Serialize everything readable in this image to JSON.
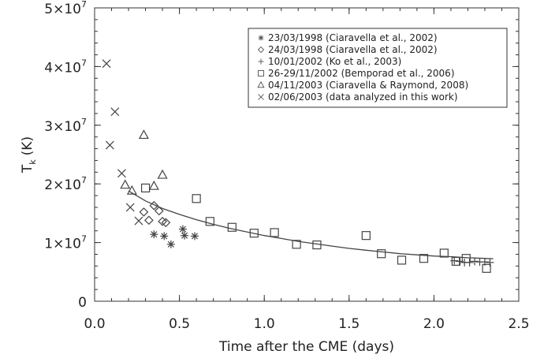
{
  "chart_data": {
    "type": "scatter",
    "xlabel": "Time after the CME (days)",
    "ylabel": "T",
    "ylabel_subscript": "k",
    "ylabel_unit": "(K)",
    "xlim": [
      0.0,
      2.5
    ],
    "ylim": [
      0,
      50000000
    ],
    "x_ticks": [
      {
        "value": 0.0,
        "label": "0.0"
      },
      {
        "value": 0.5,
        "label": "0.5"
      },
      {
        "value": 1.0,
        "label": "1.0"
      },
      {
        "value": 1.5,
        "label": "1.5"
      },
      {
        "value": 2.0,
        "label": "2.0"
      },
      {
        "value": 2.5,
        "label": "2.5"
      }
    ],
    "y_ticks": [
      {
        "value": 0,
        "mantissa": "0",
        "exponent": ""
      },
      {
        "value": 10000000,
        "mantissa": "1×10",
        "exponent": "7"
      },
      {
        "value": 20000000,
        "mantissa": "2×10",
        "exponent": "7"
      },
      {
        "value": 30000000,
        "mantissa": "3×10",
        "exponent": "7"
      },
      {
        "value": 40000000,
        "mantissa": "4×10",
        "exponent": "7"
      },
      {
        "value": 50000000,
        "mantissa": "5×10",
        "exponent": "7"
      }
    ],
    "legend_position": "top-right",
    "series": [
      {
        "name": "23/03/1998 (Ciaravella et al., 2002)",
        "marker": "asterisk",
        "points": [
          [
            0.35,
            11400000
          ],
          [
            0.41,
            11100000
          ],
          [
            0.45,
            9700000
          ],
          [
            0.52,
            12300000
          ],
          [
            0.53,
            11200000
          ],
          [
            0.59,
            11100000
          ]
        ]
      },
      {
        "name": "24/03/1998 (Ciaravella et al., 2002)",
        "marker": "diamond",
        "points": [
          [
            0.29,
            15200000
          ],
          [
            0.32,
            13800000
          ],
          [
            0.35,
            16300000
          ],
          [
            0.38,
            15400000
          ],
          [
            0.4,
            13600000
          ],
          [
            0.42,
            13400000
          ]
        ]
      },
      {
        "name": "10/01/2002 (Ko et al., 2003)",
        "marker": "plus",
        "points": [
          [
            2.12,
            6900000
          ],
          [
            2.15,
            6800000
          ],
          [
            2.18,
            6600000
          ],
          [
            2.21,
            6600000
          ],
          [
            2.24,
            6800000
          ],
          [
            2.27,
            6700000
          ],
          [
            2.3,
            6700000
          ],
          [
            2.33,
            6600000
          ]
        ]
      },
      {
        "name": "26-29/11/2002 (Bemporad et al., 2006)",
        "marker": "square",
        "points": [
          [
            0.3,
            19300000
          ],
          [
            0.6,
            17500000
          ],
          [
            0.68,
            13600000
          ],
          [
            0.81,
            12600000
          ],
          [
            0.94,
            11600000
          ],
          [
            1.06,
            11700000
          ],
          [
            1.19,
            9700000
          ],
          [
            1.31,
            9600000
          ],
          [
            1.6,
            11200000
          ],
          [
            1.69,
            8100000
          ],
          [
            1.81,
            7000000
          ],
          [
            1.94,
            7300000
          ],
          [
            2.06,
            8200000
          ],
          [
            2.13,
            6800000
          ],
          [
            2.19,
            7300000
          ],
          [
            2.31,
            5600000
          ]
        ]
      },
      {
        "name": "04/11/2003 (Ciaravella & Raymond, 2008)",
        "marker": "triangle",
        "points": [
          [
            0.18,
            19800000
          ],
          [
            0.22,
            18800000
          ],
          [
            0.29,
            28300000
          ],
          [
            0.35,
            19600000
          ],
          [
            0.4,
            21500000
          ]
        ]
      },
      {
        "name": "02/06/2003 (data analyzed in this work)",
        "marker": "cross",
        "points": [
          [
            0.07,
            40500000
          ],
          [
            0.09,
            26600000
          ],
          [
            0.12,
            32300000
          ],
          [
            0.16,
            21800000
          ],
          [
            0.21,
            16000000
          ],
          [
            0.26,
            13700000
          ]
        ]
      }
    ],
    "fit_curve": {
      "type": "line",
      "points": [
        [
          0.2,
          18800000
        ],
        [
          0.3,
          17100000
        ],
        [
          0.4,
          15800000
        ],
        [
          0.5,
          14800000
        ],
        [
          0.6,
          13900000
        ],
        [
          0.7,
          13100000
        ],
        [
          0.8,
          12400000
        ],
        [
          0.9,
          11800000
        ],
        [
          1.0,
          11200000
        ],
        [
          1.1,
          10700000
        ],
        [
          1.2,
          10200000
        ],
        [
          1.3,
          9800000
        ],
        [
          1.4,
          9400000
        ],
        [
          1.5,
          9000000
        ],
        [
          1.6,
          8700000
        ],
        [
          1.7,
          8400000
        ],
        [
          1.8,
          8100000
        ],
        [
          1.9,
          7900000
        ],
        [
          2.0,
          7700000
        ],
        [
          2.1,
          7600000
        ],
        [
          2.2,
          7400000
        ],
        [
          2.3,
          7300000
        ],
        [
          2.35,
          7250000
        ]
      ]
    }
  }
}
